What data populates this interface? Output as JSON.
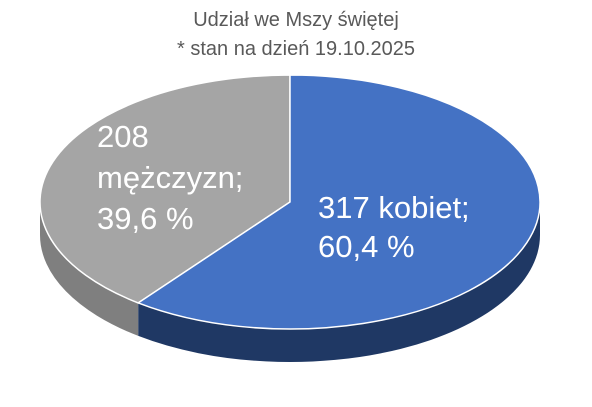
{
  "chart_data": {
    "type": "pie",
    "title": "Udział we Mszy świętej",
    "subtitle": "* stan na dzień 19.10.2025",
    "style": "3d",
    "slices": [
      {
        "value": 317,
        "percent": 60.4,
        "color": "#4472c4",
        "side_color": "#1f3864",
        "label_lines": [
          "317 kobiet;",
          "60,4 %"
        ]
      },
      {
        "value": 208,
        "percent": 39.6,
        "color": "#a5a5a5",
        "side_color": "#7f7f7f",
        "label_lines": [
          "208",
          "mężczyzn;",
          "39,6 %"
        ]
      }
    ]
  }
}
